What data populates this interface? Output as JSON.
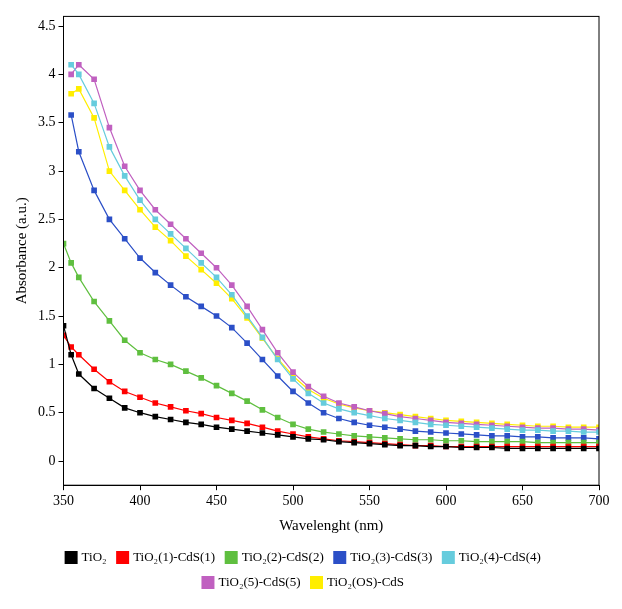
{
  "chart_data": {
    "type": "line",
    "x_label": "Wavelenght (nm)",
    "y_label": "Absorbance (a.u.)",
    "x": [
      350,
      355,
      360,
      370,
      380,
      390,
      400,
      410,
      420,
      430,
      440,
      450,
      460,
      470,
      480,
      490,
      500,
      510,
      520,
      530,
      540,
      550,
      560,
      570,
      580,
      590,
      600,
      610,
      620,
      630,
      640,
      650,
      660,
      670,
      680,
      690,
      700
    ],
    "xlim": [
      350,
      700
    ],
    "xticks": [
      350,
      400,
      450,
      500,
      550,
      600,
      650,
      700
    ],
    "ylim": [
      -0.25,
      4.6
    ],
    "yticks": [
      0,
      0.5,
      1,
      1.5,
      2,
      2.5,
      3,
      3.5,
      4,
      4.5
    ],
    "grid": false,
    "legend": "bottom",
    "marker": "square",
    "series": [
      {
        "name": "TiO₂",
        "color": "#000000",
        "values": [
          1.4,
          1.1,
          0.9,
          0.75,
          0.65,
          0.55,
          0.5,
          0.46,
          0.43,
          0.4,
          0.38,
          0.35,
          0.33,
          0.31,
          0.29,
          0.27,
          0.25,
          0.23,
          0.22,
          0.2,
          0.19,
          0.18,
          0.17,
          0.16,
          0.16,
          0.15,
          0.15,
          0.14,
          0.14,
          0.14,
          0.13,
          0.13,
          0.13,
          0.13,
          0.13,
          0.13,
          0.13
        ]
      },
      {
        "name": "TiO₂(1)-CdS(1)",
        "color": "#ff0000",
        "values": [
          1.3,
          1.18,
          1.1,
          0.95,
          0.82,
          0.72,
          0.66,
          0.6,
          0.56,
          0.52,
          0.49,
          0.45,
          0.42,
          0.39,
          0.35,
          0.31,
          0.28,
          0.25,
          0.23,
          0.21,
          0.2,
          0.19,
          0.18,
          0.17,
          0.16,
          0.16,
          0.15,
          0.15,
          0.15,
          0.15,
          0.15,
          0.15,
          0.15,
          0.15,
          0.15,
          0.15,
          0.15
        ]
      },
      {
        "name": "TiO₂(2)-CdS(2)",
        "color": "#5fbf3f",
        "values": [
          2.25,
          2.05,
          1.9,
          1.65,
          1.45,
          1.25,
          1.12,
          1.05,
          1.0,
          0.93,
          0.86,
          0.78,
          0.7,
          0.62,
          0.53,
          0.45,
          0.38,
          0.33,
          0.3,
          0.28,
          0.26,
          0.25,
          0.24,
          0.23,
          0.22,
          0.22,
          0.21,
          0.21,
          0.2,
          0.2,
          0.2,
          0.2,
          0.19,
          0.19,
          0.19,
          0.19,
          0.19
        ]
      },
      {
        "name": "TiO₂(3)-CdS(3)",
        "color": "#2b4fc7",
        "values": [
          null,
          3.58,
          3.2,
          2.8,
          2.5,
          2.3,
          2.1,
          1.95,
          1.82,
          1.7,
          1.6,
          1.5,
          1.38,
          1.22,
          1.05,
          0.88,
          0.72,
          0.6,
          0.5,
          0.44,
          0.4,
          0.37,
          0.35,
          0.33,
          0.31,
          0.3,
          0.29,
          0.28,
          0.27,
          0.26,
          0.26,
          0.25,
          0.25,
          0.24,
          0.24,
          0.24,
          0.23
        ]
      },
      {
        "name": "TiO₂(4)-CdS(4)",
        "color": "#66ccdd",
        "values": [
          null,
          4.1,
          4.0,
          3.7,
          3.25,
          2.95,
          2.7,
          2.5,
          2.35,
          2.2,
          2.05,
          1.9,
          1.72,
          1.5,
          1.28,
          1.05,
          0.85,
          0.7,
          0.6,
          0.54,
          0.5,
          0.47,
          0.44,
          0.42,
          0.4,
          0.38,
          0.37,
          0.36,
          0.35,
          0.34,
          0.33,
          0.32,
          0.32,
          0.31,
          0.31,
          0.3,
          0.3
        ]
      },
      {
        "name": "TiO₂(5)-CdS(5)",
        "color": "#c060c0",
        "values": [
          null,
          4.0,
          4.1,
          3.95,
          3.45,
          3.05,
          2.8,
          2.6,
          2.45,
          2.3,
          2.15,
          2.0,
          1.82,
          1.6,
          1.36,
          1.12,
          0.92,
          0.77,
          0.67,
          0.6,
          0.56,
          0.52,
          0.49,
          0.46,
          0.44,
          0.42,
          0.4,
          0.39,
          0.38,
          0.37,
          0.36,
          0.35,
          0.34,
          0.34,
          0.33,
          0.33,
          0.32
        ]
      },
      {
        "name": "TiO₂(OS)-CdS",
        "color": "#ffee00",
        "values": [
          null,
          3.8,
          3.85,
          3.55,
          3.0,
          2.8,
          2.6,
          2.42,
          2.28,
          2.12,
          1.98,
          1.84,
          1.68,
          1.48,
          1.27,
          1.06,
          0.88,
          0.74,
          0.65,
          0.59,
          0.55,
          0.52,
          0.5,
          0.48,
          0.46,
          0.44,
          0.42,
          0.41,
          0.4,
          0.39,
          0.38,
          0.37,
          0.36,
          0.36,
          0.35,
          0.35,
          0.35
        ]
      }
    ]
  }
}
